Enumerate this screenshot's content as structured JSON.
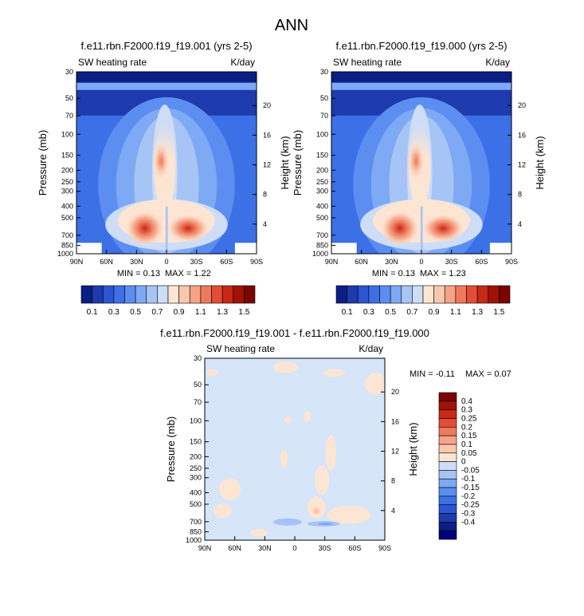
{
  "main_title": "ANN",
  "colors": {
    "diverging": [
      "#0a1e86",
      "#1d3aae",
      "#2b55d1",
      "#3b70e6",
      "#5b8ef0",
      "#7ea9f4",
      "#a6c4f5",
      "#cdddf6",
      "#fde5d4",
      "#f9c7ac",
      "#f5a386",
      "#ee7a5e",
      "#e44d34",
      "#c82814",
      "#a01206",
      "#7a0503"
    ],
    "diff_palette": [
      "#00007a",
      "#0a1e86",
      "#1d3aae",
      "#2b55d1",
      "#3b70e6",
      "#5b8ef0",
      "#7ea9f4",
      "#a6c4f5",
      "#cdddf6",
      "#fde5d4",
      "#f9c7ac",
      "#f5a386",
      "#ee7a5e",
      "#e44d34",
      "#c82814",
      "#a01206",
      "#7a0503"
    ]
  },
  "panels": [
    {
      "title": "f.e11.rbn.F2000.f19_f19.001 (yrs 2-5)",
      "left_label": "SW heating rate",
      "right_label": "K/day",
      "ylabel": "Pressure (mb)",
      "y2label": "Height (km)",
      "min_text": "MIN =   0.13",
      "max_text": "MAX =   1.22"
    },
    {
      "title": "f.e11.rbn.F2000.f19_f19.000 (yrs 2-5)",
      "left_label": "SW heating rate",
      "right_label": "K/day",
      "ylabel": "Pressure (mb)",
      "y2label": "Height (km)",
      "min_text": "MIN =   0.13",
      "max_text": "MAX =   1.23"
    },
    {
      "title": "f.e11.rbn.F2000.f19_f19.001 - f.e11.rbn.F2000.f19_f19.000",
      "left_label": "SW heating rate",
      "right_label": "K/day",
      "ylabel": "Pressure (mb)",
      "y2label": "Height (km)",
      "min_text": "MIN =  -0.11",
      "max_text": "MAX =   0.07"
    }
  ],
  "chart_data": [
    {
      "type": "heatmap",
      "title": "f.e11.rbn.F2000.f19_f19.001 (yrs 2-5)",
      "xlabel": "",
      "ylabel": "Pressure (mb)",
      "y2label": "Height (km)",
      "x_ticks": [
        "90N",
        "60N",
        "30N",
        "0",
        "30S",
        "60S",
        "90S"
      ],
      "y_ticks": [
        "30",
        "50",
        "70",
        "100",
        "150",
        "200",
        "250",
        "300",
        "400",
        "500",
        "700",
        "850",
        "1000"
      ],
      "y2_ticks": [
        "20",
        "16",
        "12",
        "8",
        "4"
      ],
      "y_scale": "log-pressure",
      "min": 0.13,
      "max": 1.22,
      "colorbar": [
        "0.1",
        "0.3",
        "0.5",
        "0.7",
        "0.9",
        "1.1",
        "1.3",
        "1.5"
      ]
    },
    {
      "type": "heatmap",
      "title": "f.e11.rbn.F2000.f19_f19.000 (yrs 2-5)",
      "xlabel": "",
      "ylabel": "Pressure (mb)",
      "y2label": "Height (km)",
      "x_ticks": [
        "90N",
        "60N",
        "30N",
        "0",
        "30S",
        "60S",
        "90S"
      ],
      "y_ticks": [
        "30",
        "50",
        "70",
        "100",
        "150",
        "200",
        "250",
        "300",
        "400",
        "500",
        "700",
        "850",
        "1000"
      ],
      "y2_ticks": [
        "20",
        "16",
        "12",
        "8",
        "4"
      ],
      "y_scale": "log-pressure",
      "min": 0.13,
      "max": 1.23,
      "colorbar": [
        "0.1",
        "0.3",
        "0.5",
        "0.7",
        "0.9",
        "1.1",
        "1.3",
        "1.5"
      ]
    },
    {
      "type": "heatmap",
      "title": "f.e11.rbn.F2000.f19_f19.001 - f.e11.rbn.F2000.f19_f19.000",
      "xlabel": "",
      "ylabel": "Pressure (mb)",
      "y2label": "Height (km)",
      "x_ticks": [
        "90N",
        "60N",
        "30N",
        "0",
        "30S",
        "60S",
        "90S"
      ],
      "y_ticks": [
        "30",
        "50",
        "70",
        "100",
        "150",
        "200",
        "250",
        "300",
        "400",
        "500",
        "700",
        "850",
        "1000"
      ],
      "y2_ticks": [
        "20",
        "16",
        "12",
        "8",
        "4"
      ],
      "y_scale": "log-pressure",
      "min": -0.11,
      "max": 0.07,
      "colorbar": [
        "0.4",
        "0.3",
        "0.25",
        "0.2",
        "0.15",
        "0.1",
        "0.05",
        "0",
        "-0.05",
        "-0.1",
        "-0.15",
        "-0.2",
        "-0.25",
        "-0.3",
        "-0.4"
      ]
    }
  ]
}
